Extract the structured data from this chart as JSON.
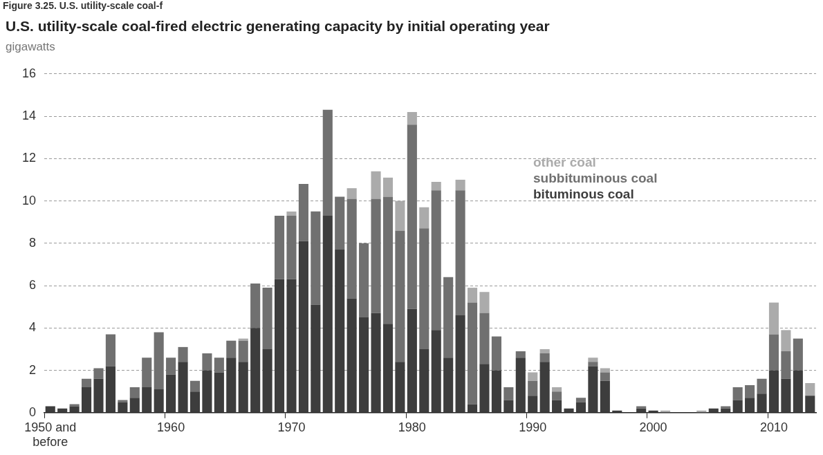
{
  "chart_data": {
    "type": "bar",
    "stacked": true,
    "title": "U.S. utility-scale coal-fired electric generating capacity by initial operating year",
    "ylabel": "gigawatts",
    "annotations": [
      "Figure 3.25. U.S. utility-scale coal-f"
    ],
    "categories": [
      "1950 and before",
      null,
      null,
      null,
      null,
      null,
      null,
      null,
      null,
      null,
      "1960",
      null,
      null,
      null,
      null,
      null,
      null,
      null,
      null,
      null,
      "1970",
      null,
      null,
      null,
      null,
      null,
      null,
      null,
      null,
      null,
      "1980",
      null,
      null,
      null,
      null,
      null,
      null,
      null,
      null,
      null,
      "1990",
      null,
      null,
      null,
      null,
      null,
      null,
      null,
      null,
      null,
      "2000",
      null,
      null,
      null,
      null,
      null,
      null,
      null,
      null,
      null,
      "2010",
      null,
      null,
      null
    ],
    "series": [
      {
        "name": "bituminous coal",
        "color": "#3d3d3d",
        "values": [
          0.3,
          0.2,
          0.3,
          1.2,
          1.6,
          2.2,
          0.5,
          0.7,
          1.2,
          1.1,
          1.8,
          2.4,
          1.0,
          2.0,
          1.9,
          2.6,
          2.4,
          4.0,
          3.0,
          6.3,
          6.3,
          8.1,
          5.1,
          9.3,
          7.7,
          5.4,
          4.5,
          4.7,
          4.2,
          2.4,
          4.9,
          3.0,
          3.9,
          2.6,
          4.6,
          0.4,
          2.3,
          2.0,
          0.6,
          2.6,
          0.8,
          2.4,
          0.6,
          0.2,
          0.5,
          2.2,
          1.5,
          0.1,
          0,
          0.2,
          0.1,
          0,
          0,
          0,
          0,
          0.2,
          0.2,
          0.6,
          0.7,
          0.9,
          2.0,
          1.6,
          2.0,
          0.8
        ]
      },
      {
        "name": "subbituminous coal",
        "color": "#707070",
        "values": [
          0,
          0,
          0.1,
          0.4,
          0.5,
          1.5,
          0.1,
          0.5,
          1.4,
          2.7,
          0.8,
          0.7,
          0.5,
          0.8,
          0.7,
          0.8,
          1.0,
          2.1,
          2.9,
          3.0,
          3.0,
          2.7,
          4.4,
          5.0,
          2.5,
          4.7,
          3.5,
          5.4,
          6.0,
          6.2,
          8.7,
          5.7,
          6.6,
          3.8,
          5.9,
          4.8,
          2.4,
          1.6,
          0.6,
          0.3,
          0.7,
          0.4,
          0.4,
          0,
          0.2,
          0.2,
          0.4,
          0,
          0,
          0.1,
          0,
          0,
          0,
          0,
          0,
          0,
          0.1,
          0.6,
          0.6,
          0.7,
          1.7,
          1.3,
          1.5,
          0
        ]
      },
      {
        "name": "other coal",
        "color": "#ababab",
        "values": [
          0,
          0,
          0,
          0,
          0,
          0,
          0,
          0,
          0,
          0,
          0,
          0,
          0,
          0,
          0,
          0,
          0.1,
          0,
          0,
          0,
          0.2,
          0,
          0,
          0,
          0,
          0.5,
          0,
          1.3,
          0.9,
          1.4,
          0.6,
          1.0,
          0.4,
          0,
          0.5,
          0.7,
          1.0,
          0,
          0,
          0,
          0.4,
          0.2,
          0.2,
          0,
          0,
          0.2,
          0.2,
          0,
          0,
          0,
          0,
          0.1,
          0,
          0,
          0.1,
          0,
          0,
          0,
          0,
          0,
          1.5,
          1.0,
          0,
          0.6
        ]
      }
    ],
    "ylim": [
      0,
      16
    ],
    "yticks": [
      0,
      2,
      4,
      6,
      8,
      10,
      12,
      14,
      16
    ],
    "grid": "y",
    "legend": "right"
  }
}
